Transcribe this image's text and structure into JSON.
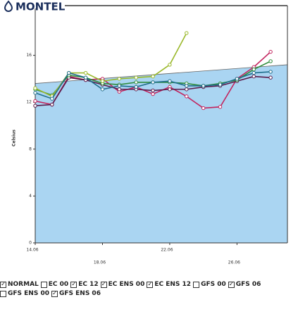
{
  "logo": "MONTEL",
  "chart_data": {
    "type": "line",
    "y_label": "Celsius",
    "x": [
      14,
      15,
      16,
      17,
      18,
      19,
      20,
      21,
      22,
      23,
      24,
      25,
      26,
      27,
      28
    ],
    "xlim": [
      14,
      29
    ],
    "xticks": [
      {
        "value": 14,
        "label": "14.06"
      },
      {
        "value": 18,
        "label": "18.06"
      },
      {
        "value": 22,
        "label": "22.06"
      },
      {
        "value": 26,
        "label": "26.06"
      }
    ],
    "ylim": [
      0,
      20
    ],
    "yticks": [
      0,
      4,
      8,
      12,
      16
    ],
    "normal": {
      "name": "NORMAL",
      "color": "#4a78b5",
      "fill": "#aad5f2",
      "line_color": "#666666",
      "checked": true,
      "x": [
        14,
        29
      ],
      "values": [
        13.6,
        15.2
      ]
    },
    "series": [
      {
        "name": "EC 00",
        "color": "#333333",
        "checked": false,
        "values": [
          null,
          null,
          null,
          null,
          null,
          null,
          null,
          null,
          null,
          null,
          null,
          null,
          null,
          null,
          null
        ]
      },
      {
        "name": "EC 12",
        "color": "#c2245e",
        "checked": true,
        "values": [
          12.1,
          11.8,
          14.2,
          13.9,
          14.0,
          12.9,
          13.3,
          12.7,
          13.3,
          12.5,
          11.5,
          11.6,
          14.0,
          15.0,
          16.3
        ]
      },
      {
        "name": "EC ENS 00",
        "color": "#5a1a4a",
        "checked": true,
        "values": [
          11.7,
          11.8,
          14.1,
          13.9,
          13.5,
          13.1,
          13.1,
          13.0,
          13.1,
          13.1,
          13.3,
          13.4,
          13.8,
          14.2,
          14.1
        ]
      },
      {
        "name": "EC ENS 12",
        "color": "#2e8b3a",
        "checked": true,
        "values": [
          13.1,
          12.6,
          14.3,
          14.1,
          13.6,
          13.5,
          13.7,
          13.7,
          13.7,
          13.6,
          13.4,
          13.6,
          13.9,
          14.8,
          15.5
        ]
      },
      {
        "name": "GFS 00",
        "color": "#e0c020",
        "checked": false,
        "values": [
          null,
          null,
          null,
          null,
          null,
          null,
          null,
          null,
          null,
          null,
          null,
          null,
          null,
          null,
          null
        ]
      },
      {
        "name": "GFS 06",
        "color": "#9ab82a",
        "checked": true,
        "values": [
          13.2,
          12.5,
          14.5,
          14.5,
          13.8,
          14.0,
          14.1,
          14.2,
          15.2,
          17.9,
          null,
          null,
          null,
          null,
          null
        ]
      },
      {
        "name": "GFS ENS 00",
        "color": "#c04060",
        "checked": false,
        "values": [
          null,
          null,
          null,
          null,
          null,
          null,
          null,
          null,
          null,
          null,
          null,
          null,
          null,
          null,
          null
        ]
      },
      {
        "name": "GFS ENS 06",
        "color": "#1f6e8c",
        "checked": true,
        "values": [
          12.8,
          12.3,
          14.5,
          14.1,
          13.1,
          13.4,
          13.3,
          13.7,
          13.8,
          13.4,
          13.4,
          13.5,
          14.0,
          14.5,
          14.6
        ]
      }
    ]
  }
}
